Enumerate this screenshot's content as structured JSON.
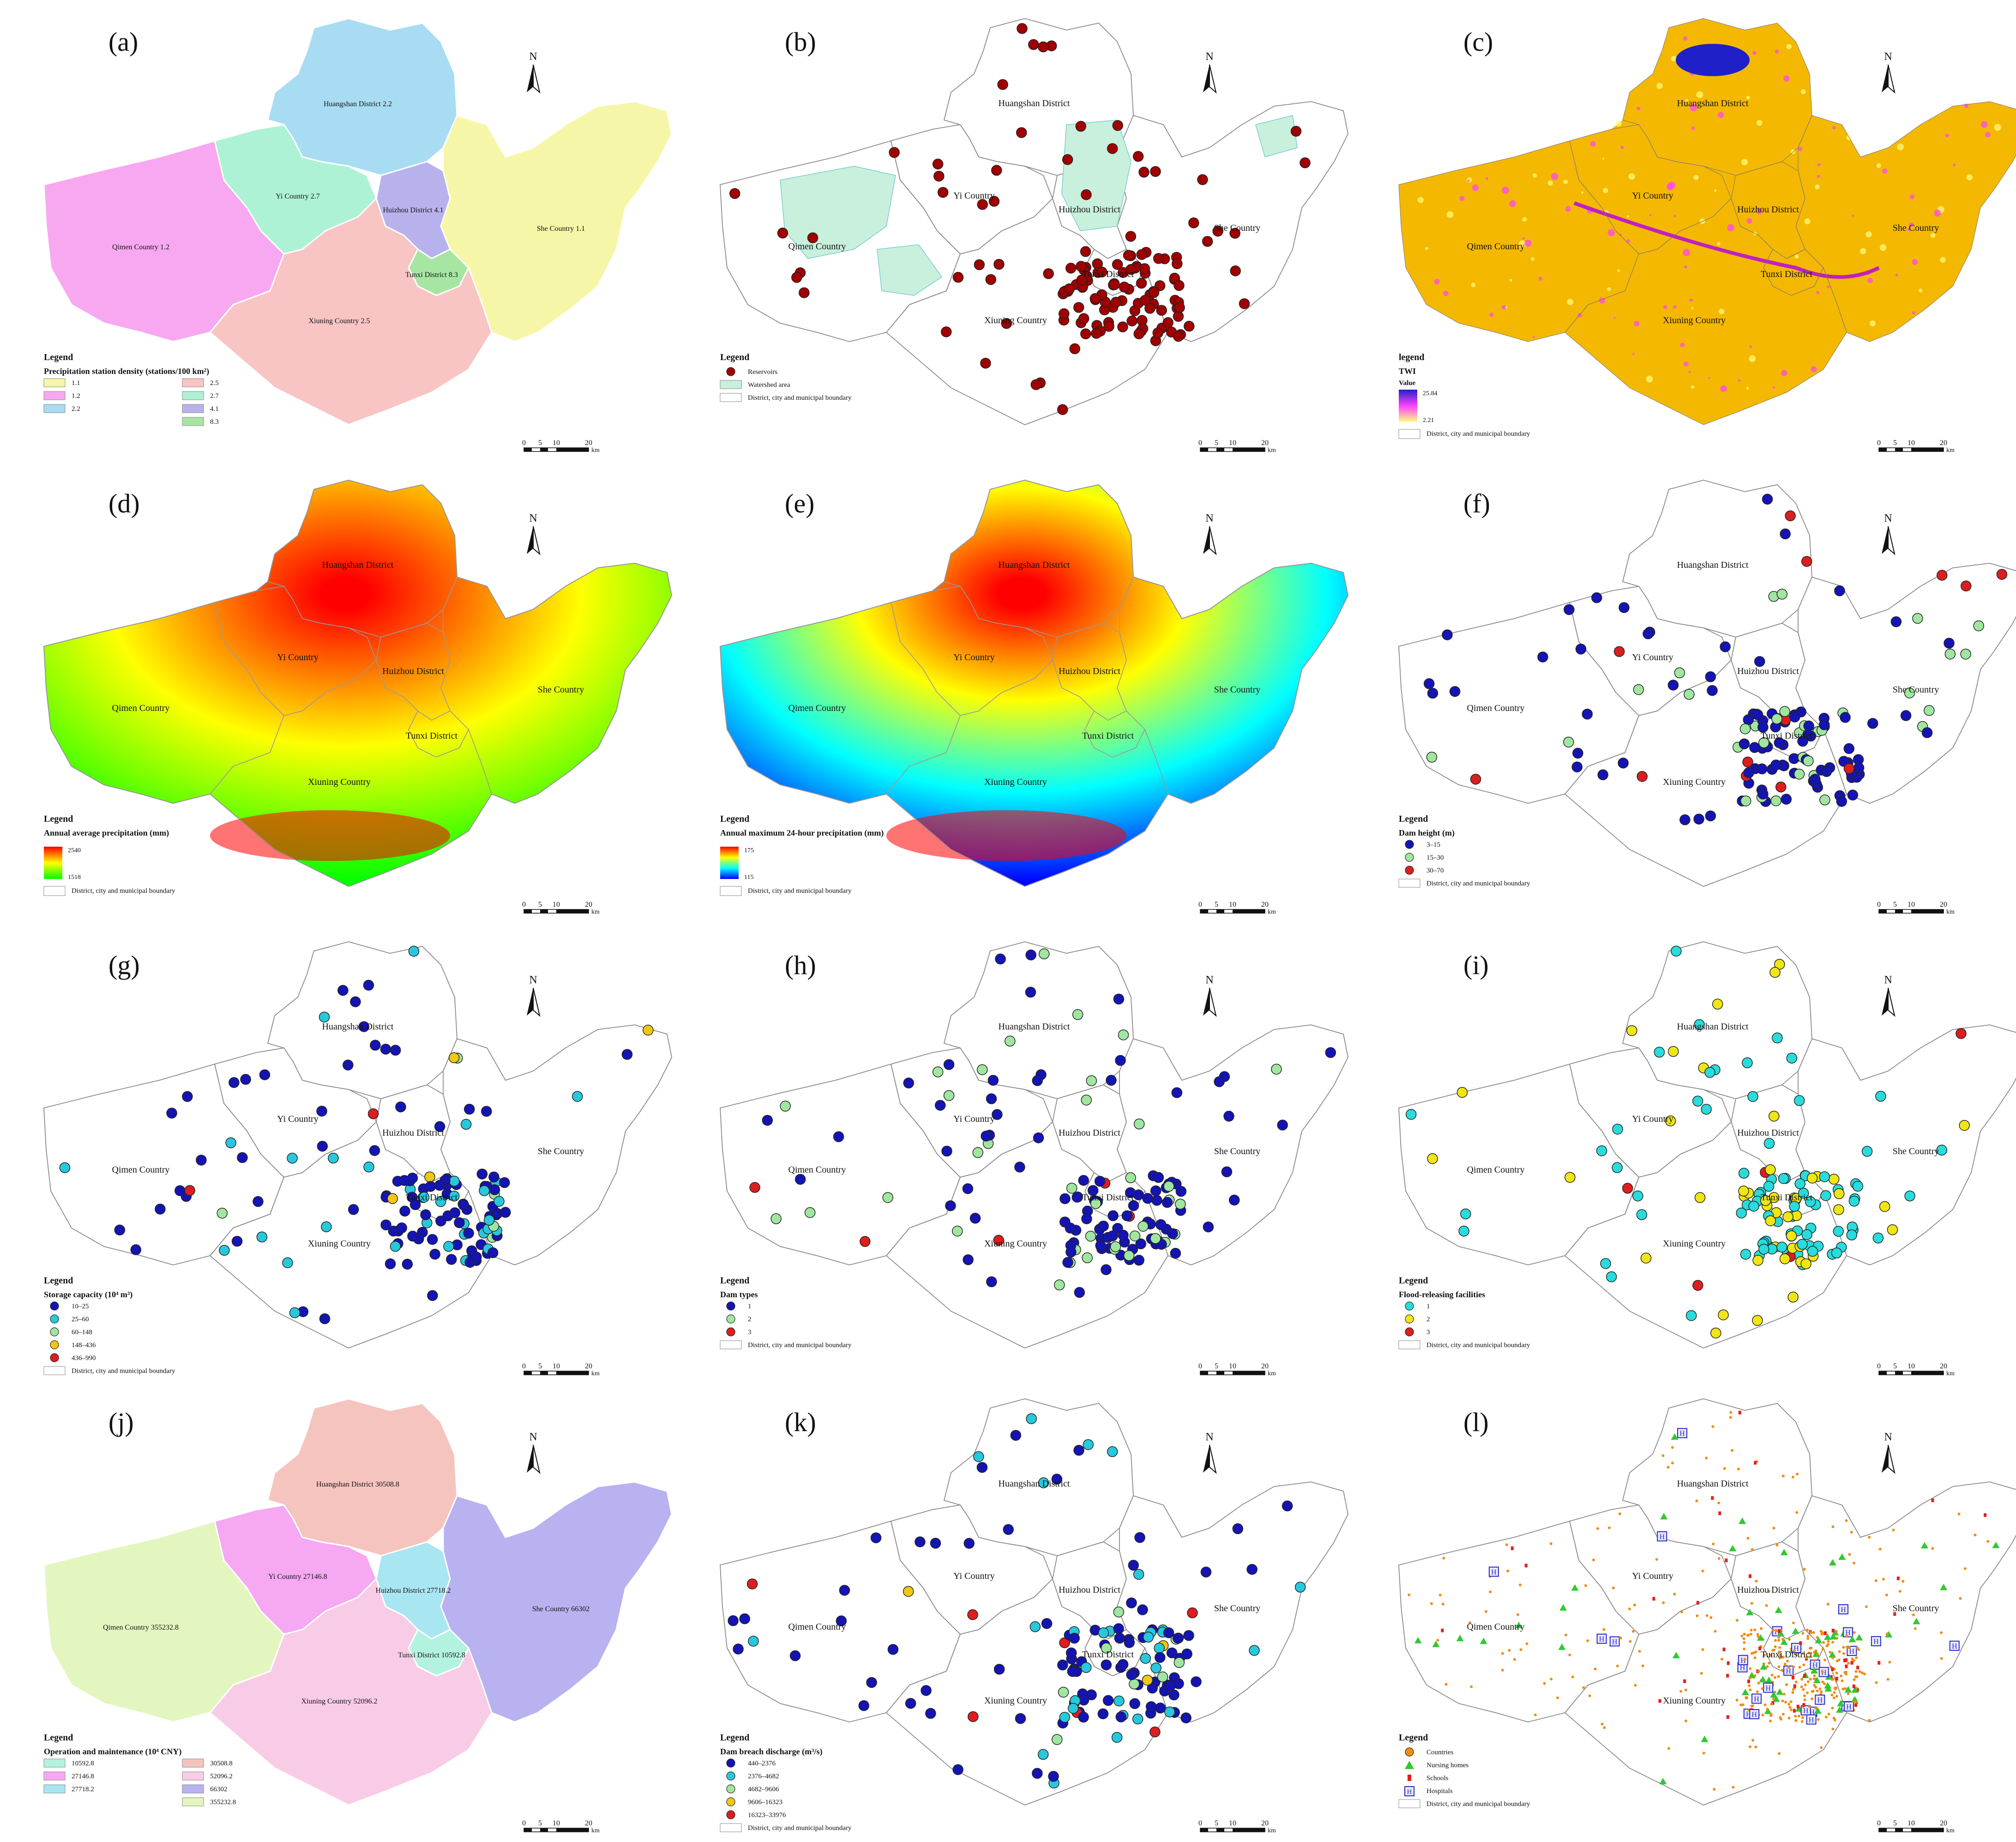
{
  "panels": [
    {
      "id": "a",
      "label": "(a)",
      "type": "choropleth",
      "regions": {
        "huangshan": {
          "name": "Huangshan District 2.2",
          "fill": "#a8dcf2"
        },
        "yi": {
          "name": "Yi Country 2.7",
          "fill": "#aef2d6"
        },
        "qimen": {
          "name": "Qimen Country 1.2",
          "fill": "#f7a8f0"
        },
        "huizhou": {
          "name": "Huizhou District 4.1",
          "fill": "#b8b2ec"
        },
        "she": {
          "name": "She Country 1.1",
          "fill": "#f6f6a8"
        },
        "tunxi": {
          "name": "Tunxi District 8.3",
          "fill": "#a6e6a2"
        },
        "xiuning": {
          "name": "Xiuning Country 2.5",
          "fill": "#f8c4c4"
        }
      },
      "legend": {
        "heading": "Legend",
        "title": "Precipitation station density (stations/100 km²)",
        "items": [
          {
            "label": "1.1",
            "color": "#f6f6a8"
          },
          {
            "label": "1.2",
            "color": "#f7a8f0"
          },
          {
            "label": "2.2",
            "color": "#a8dcf2"
          },
          {
            "label": "2.5",
            "color": "#f8c4c4"
          },
          {
            "label": "2.7",
            "color": "#aef2d6"
          },
          {
            "label": "4.1",
            "color": "#b8b2ec"
          },
          {
            "label": "8.3",
            "color": "#a6e6a2"
          }
        ]
      }
    },
    {
      "id": "b",
      "label": "(b)",
      "type": "points",
      "regions": {
        "huangshan": {
          "name": "Huangshan District"
        },
        "yi": {
          "name": "Yi Country"
        },
        "qimen": {
          "name": "Qimen Country"
        },
        "huizhou": {
          "name": "Huizhou District"
        },
        "she": {
          "name": "She Country"
        },
        "tunxi": {
          "name": "Tunxi District"
        },
        "xiuning": {
          "name": "Xiuning Country"
        }
      },
      "legend": {
        "heading": "Legend",
        "items": [
          {
            "label": "Reservoirs",
            "color": "#a00000",
            "shape": "dot"
          },
          {
            "label": "Watershed area",
            "color": "#c8f0dc",
            "shape": "box"
          },
          {
            "label": "District, city and municipal boundary",
            "color": "#ffffff",
            "shape": "box"
          }
        ]
      }
    },
    {
      "id": "c",
      "label": "(c)",
      "type": "raster",
      "regions": {
        "huangshan": {
          "name": "Huangshan District"
        },
        "yi": {
          "name": "Yi Country"
        },
        "qimen": {
          "name": "Qimen Country"
        },
        "huizhou": {
          "name": "Huizhou District"
        },
        "she": {
          "name": "She Country"
        },
        "tunxi": {
          "name": "Tunxi District"
        },
        "xiuning": {
          "name": "Xiuning Country"
        }
      },
      "legend": {
        "heading": "legend",
        "title": "TWI",
        "subtitle": "Value",
        "max": "25.84",
        "min": "2.21",
        "colors": [
          "#2020c8",
          "#ff40ff",
          "#ffff80"
        ],
        "boundary": "District, city and municipal boundary"
      }
    },
    {
      "id": "d",
      "label": "(d)",
      "type": "gradient",
      "regions": {
        "huangshan": {
          "name": "Huangshan District"
        },
        "yi": {
          "name": "Yi Country"
        },
        "qimen": {
          "name": "Qimen Country"
        },
        "huizhou": {
          "name": "Huizhou District"
        },
        "she": {
          "name": "She Country"
        },
        "tunxi": {
          "name": "Tunxi District"
        },
        "xiuning": {
          "name": "Xiuning Country"
        }
      },
      "legend": {
        "heading": "Legend",
        "title": "Annual average precipitation (mm)",
        "max": "2540",
        "min": "1518",
        "colors": [
          "#ff0000",
          "#ffff00",
          "#00ff00"
        ],
        "boundary": "District, city and municipal boundary"
      }
    },
    {
      "id": "e",
      "label": "(e)",
      "type": "gradient",
      "regions": {
        "huangshan": {
          "name": "Huangshan District"
        },
        "yi": {
          "name": "Yi Country"
        },
        "qimen": {
          "name": "Qimen Country"
        },
        "huizhou": {
          "name": "Huizhou District"
        },
        "she": {
          "name": "She Country"
        },
        "tunxi": {
          "name": "Tunxi District"
        },
        "xiuning": {
          "name": "Xiuning Country"
        }
      },
      "legend": {
        "heading": "Legend",
        "title": "Annual maximum 24-hour precipitation (mm)",
        "max": "175",
        "min": "115",
        "colors": [
          "#ff0000",
          "#ffff00",
          "#00ffff",
          "#0000ff"
        ],
        "boundary": "District, city and municipal boundary"
      }
    },
    {
      "id": "f",
      "label": "(f)",
      "type": "points",
      "regions": {
        "huangshan": {
          "name": "Huangshan District"
        },
        "yi": {
          "name": "Yi Country"
        },
        "qimen": {
          "name": "Qimen Country"
        },
        "huizhou": {
          "name": "Huizhou District"
        },
        "she": {
          "name": "She Country"
        },
        "tunxi": {
          "name": "Tunxi District"
        },
        "xiuning": {
          "name": "Xiuning Country"
        }
      },
      "legend": {
        "heading": "Legend",
        "title": "Dam height (m)",
        "items": [
          {
            "label": "3–15",
            "color": "#1414b4"
          },
          {
            "label": "15–30",
            "color": "#a0e6a0"
          },
          {
            "label": "30–70",
            "color": "#dc1e1e"
          }
        ],
        "boundary": "District, city and municipal boundary"
      }
    },
    {
      "id": "g",
      "label": "(g)",
      "type": "points",
      "regions": {
        "huangshan": {
          "name": "Huangshan District"
        },
        "yi": {
          "name": "Yi Country"
        },
        "qimen": {
          "name": "Qimen Country"
        },
        "huizhou": {
          "name": "Huizhou District"
        },
        "she": {
          "name": "She Country"
        },
        "tunxi": {
          "name": "Tunxi District"
        },
        "xiuning": {
          "name": "Xiuning Country"
        }
      },
      "legend": {
        "heading": "Legend",
        "title": "Storage capacity (10⁴ m³)",
        "items": [
          {
            "label": "10–25",
            "color": "#1414b4"
          },
          {
            "label": "25–60",
            "color": "#28c8dc"
          },
          {
            "label": "60–148",
            "color": "#a0e6a0"
          },
          {
            "label": "148–436",
            "color": "#f0c814"
          },
          {
            "label": "436–990",
            "color": "#dc1e1e"
          }
        ],
        "boundary": "District, city and municipal boundary"
      }
    },
    {
      "id": "h",
      "label": "(h)",
      "type": "points",
      "regions": {
        "huangshan": {
          "name": "Huangshan District"
        },
        "yi": {
          "name": "Yi Country"
        },
        "qimen": {
          "name": "Qimen Country"
        },
        "huizhou": {
          "name": "Huizhou District"
        },
        "she": {
          "name": "She Country"
        },
        "tunxi": {
          "name": "Tunxi District"
        },
        "xiuning": {
          "name": "Xiuning Country"
        }
      },
      "legend": {
        "heading": "Legend",
        "title": "Dam types",
        "items": [
          {
            "label": "1",
            "color": "#1414b4"
          },
          {
            "label": "2",
            "color": "#a0e6a0"
          },
          {
            "label": "3",
            "color": "#dc1e1e"
          }
        ],
        "boundary": "District, city and municipal boundary"
      }
    },
    {
      "id": "i",
      "label": "(i)",
      "type": "points",
      "regions": {
        "huangshan": {
          "name": "Huangshan District"
        },
        "yi": {
          "name": "Yi Country"
        },
        "qimen": {
          "name": "Qimen Country"
        },
        "huizhou": {
          "name": "Huizhou District"
        },
        "she": {
          "name": "She Country"
        },
        "tunxi": {
          "name": "Tunxi District"
        },
        "xiuning": {
          "name": "Xiuning Country"
        }
      },
      "legend": {
        "heading": "Legend",
        "title": "Flood-releasing facilities",
        "items": [
          {
            "label": "1",
            "color": "#28dcdc"
          },
          {
            "label": "2",
            "color": "#f0e614"
          },
          {
            "label": "3",
            "color": "#dc1e1e"
          }
        ],
        "boundary": "District, city and municipal boundary"
      }
    },
    {
      "id": "j",
      "label": "(j)",
      "type": "choropleth",
      "regions": {
        "huangshan": {
          "name": "Huangshan District 30508.8",
          "fill": "#f6c4be"
        },
        "yi": {
          "name": "Yi Country 27146.8",
          "fill": "#f6a8f2"
        },
        "qimen": {
          "name": "Qimen Country 355232.8",
          "fill": "#e4f6c0"
        },
        "huizhou": {
          "name": "Huizhou District 27718.2",
          "fill": "#a8e6f2"
        },
        "she": {
          "name": "She Country 66302",
          "fill": "#b8b2f0"
        },
        "tunxi": {
          "name": "Tunxi District 10592.8",
          "fill": "#b4f2e0"
        },
        "xiuning": {
          "name": "Xiuning Country 52096.2",
          "fill": "#f8cce6"
        }
      },
      "legend": {
        "heading": "Legend",
        "title": "Operation and maintenance (10⁴ CNY)",
        "items": [
          {
            "label": "10592.8",
            "color": "#b4f2e0"
          },
          {
            "label": "27146.8",
            "color": "#f6a8f2"
          },
          {
            "label": "27718.2",
            "color": "#a8e6f2"
          },
          {
            "label": "30508.8",
            "color": "#f6c4be"
          },
          {
            "label": "52096.2",
            "color": "#f8cce6"
          },
          {
            "label": "66302",
            "color": "#b8b2f0"
          },
          {
            "label": "355232.8",
            "color": "#e4f6c0"
          }
        ]
      }
    },
    {
      "id": "k",
      "label": "(k)",
      "type": "points",
      "regions": {
        "huangshan": {
          "name": "Huangshan District"
        },
        "yi": {
          "name": "Yi Country"
        },
        "qimen": {
          "name": "Qimen Country"
        },
        "huizhou": {
          "name": "Huizhou District"
        },
        "she": {
          "name": "She Country"
        },
        "tunxi": {
          "name": "Tunxi District"
        },
        "xiuning": {
          "name": "Xiuning Country"
        }
      },
      "legend": {
        "heading": "Legend",
        "title": "Dam breach discharge (m³/s)",
        "items": [
          {
            "label": "440–2376",
            "color": "#1414b4"
          },
          {
            "label": "2376–4682",
            "color": "#28c8dc"
          },
          {
            "label": "4682–9606",
            "color": "#a0e6a0"
          },
          {
            "label": "9606–16323",
            "color": "#f0c814"
          },
          {
            "label": "16323–33976",
            "color": "#dc1e1e"
          }
        ],
        "boundary": "District, city and municipal boundary"
      }
    },
    {
      "id": "l",
      "label": "(l)",
      "type": "facilities",
      "regions": {
        "huangshan": {
          "name": "Huangshan District"
        },
        "yi": {
          "name": "Yi Country"
        },
        "qimen": {
          "name": "Qimen Country"
        },
        "huizhou": {
          "name": "Huizhou District"
        },
        "she": {
          "name": "She Country"
        },
        "tunxi": {
          "name": "Tunxi District"
        },
        "xiuning": {
          "name": "Xiuning Country"
        }
      },
      "legend": {
        "heading": "Legend",
        "items": [
          {
            "label": "Countries",
            "color": "#f08c14",
            "shape": "dot"
          },
          {
            "label": "Nursing homes",
            "color": "#32c832",
            "shape": "tri"
          },
          {
            "label": "Schools",
            "color": "#e61e1e",
            "shape": "flag"
          },
          {
            "label": "Hospitals",
            "color": "#2828c8",
            "shape": "h"
          },
          {
            "label": "District, city and municipal boundary",
            "color": "#ffffff",
            "shape": "box"
          }
        ]
      }
    }
  ],
  "north_arrow": "N",
  "scale_bar": {
    "ticks": [
      "0",
      "5",
      "10",
      "20"
    ],
    "unit": "km"
  }
}
